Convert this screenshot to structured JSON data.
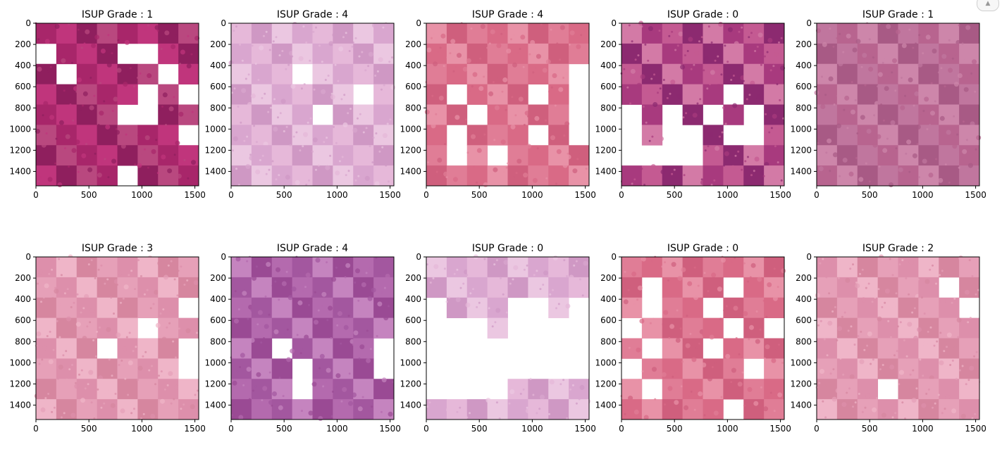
{
  "window": {
    "scroll_up_icon": "chevron-up-icon",
    "scroll_up_glyph": "▲"
  },
  "panel_common": {
    "x_ticks": [
      "0",
      "500",
      "1000",
      "1500"
    ],
    "y_ticks": [
      "0",
      "200",
      "400",
      "600",
      "800",
      "1000",
      "1200",
      "1400"
    ],
    "x_tick_values": [
      0,
      500,
      1000,
      1500
    ],
    "y_tick_values": [
      0,
      200,
      400,
      600,
      800,
      1000,
      1200,
      1400
    ],
    "extent": [
      0,
      1536
    ]
  },
  "panels": [
    {
      "title": "ISUP Grade : 1",
      "palette": "magenta",
      "mask": "1111111101110011101111011111101011110011111111101111"
    },
    {
      "title": "ISUP Grade : 4",
      "palette": "lilac",
      "mask": "1111111111111111111011111111110111110111111111111111"
    },
    {
      "title": "ISUP Grade : 4",
      "palette": "rose",
      "mask": "1111111111111111111111101011101011011110101110101010"
    },
    {
      "title": "ISUP Grade : 0",
      "palette": "purple",
      "mask": "1111111111111111111111111111101101010101010010010000"
    },
    {
      "title": "ISUP Grade : 1",
      "palette": "mauve",
      "mask": "1111111111111111111111111111111111111111111111111111"
    },
    {
      "title": "ISUP Grade : 3",
      "palette": "pink",
      "mask": "1111111111111111111111101111101111101110111111101111"
    },
    {
      "title": "ISUP Grade : 4",
      "palette": "violet",
      "mask": "1111111111111111111111111111111111011110111011101110"
    },
    {
      "title": "ISUP Grade : 0",
      "palette": "lilac",
      "mask": "1111111111111111011100100001000000000000000000000000"
    },
    {
      "title": "ISUP Grade : 0",
      "palette": "rose",
      "mask": "1111111110111011101101110111101010110111011111011011"
    },
    {
      "title": "ISUP Grade : 2",
      "palette": "pink",
      "mask": "1111111111111101111111101111111111111111111111111110"
    }
  ],
  "palettes": {
    "magenta": [
      "#a8266a",
      "#c0357c",
      "#8f1f5e",
      "#b9487f"
    ],
    "lilac": [
      "#d9a6cf",
      "#e6b8d9",
      "#cf98c4",
      "#ebc7e1"
    ],
    "rose": [
      "#e07d96",
      "#d96a86",
      "#e892a7",
      "#cf5f7d"
    ],
    "purple": [
      "#a83a7e",
      "#c45a92",
      "#8c2a70",
      "#d37aa6"
    ],
    "mauve": [
      "#c0769e",
      "#b8648f",
      "#cd86aa",
      "#a85a85"
    ],
    "pink": [
      "#e6a0b8",
      "#dd8fab",
      "#efb5c8",
      "#d6869f"
    ],
    "violet": [
      "#b46aae",
      "#a3579f",
      "#c584bf",
      "#9a4a94"
    ]
  }
}
